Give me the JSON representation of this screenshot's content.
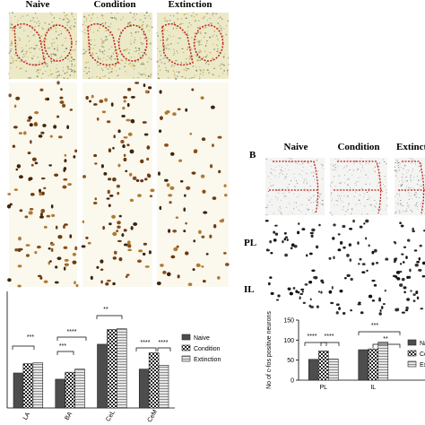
{
  "panel_a": {
    "columns": [
      "Naive",
      "Condition",
      "Extinction"
    ]
  },
  "panel_b": {
    "label": "B",
    "columns": [
      "Naive",
      "Condition",
      "Extinction"
    ],
    "rows": [
      "PL",
      "IL"
    ]
  },
  "chart_data": [
    {
      "type": "bar",
      "categories": [
        "LA",
        "BA",
        "CeL",
        "CeM"
      ],
      "series": [
        {
          "name": "Naive",
          "color": "#4d4d4d",
          "pattern": "solid",
          "values": [
            45,
            37,
            82,
            50
          ]
        },
        {
          "name": "Condition",
          "color": "#ffffff",
          "pattern": "crosshatch",
          "values": [
            57,
            46,
            101,
            71
          ]
        },
        {
          "name": "Extinction",
          "color": "#d9d9d9",
          "pattern": "lines",
          "values": [
            58,
            50,
            102,
            55
          ]
        }
      ],
      "ylim": [
        0,
        150
      ],
      "annotations": [
        "***",
        "***",
        "****",
        "**",
        "****",
        "****"
      ]
    },
    {
      "type": "bar",
      "categories": [
        "PL",
        "IL"
      ],
      "ylabel": "No of c-fos positive neurons",
      "series": [
        {
          "name": "Naive",
          "color": "#4d4d4d",
          "pattern": "solid",
          "values": [
            52,
            76
          ]
        },
        {
          "name": "Condition",
          "color": "#ffffff",
          "pattern": "crosshatch",
          "values": [
            73,
            78
          ]
        },
        {
          "name": "Extinction",
          "color": "#d9d9d9",
          "pattern": "lines",
          "values": [
            53,
            95
          ]
        }
      ],
      "ylim": [
        0,
        150
      ],
      "yticks": [
        0,
        50,
        100,
        150
      ],
      "annotations": [
        "****",
        "****",
        "***",
        "**"
      ]
    }
  ]
}
